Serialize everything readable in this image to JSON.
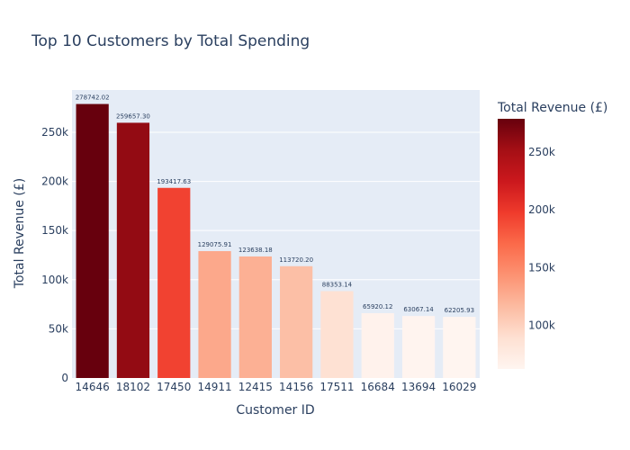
{
  "chart_data": {
    "type": "bar",
    "title": "Top 10 Customers by Total Spending",
    "xlabel": "Customer ID",
    "ylabel": "Total Revenue (£)",
    "categories": [
      "14646",
      "18102",
      "17450",
      "14911",
      "12415",
      "14156",
      "17511",
      "16684",
      "13694",
      "16029"
    ],
    "values": [
      278742.02,
      259657.3,
      193417.63,
      129075.91,
      123638.18,
      113720.2,
      88353.14,
      65920.12,
      63067.14,
      62205.93
    ],
    "value_labels": [
      "278742.02",
      "259657.30",
      "193417.63",
      "129075.91",
      "123638.18",
      "113720.20",
      "88353.14",
      "65920.12",
      "63067.14",
      "62205.93"
    ],
    "ylim": [
      0,
      293000
    ],
    "yticks": [
      0,
      50000,
      100000,
      150000,
      200000,
      250000
    ],
    "ytick_labels": [
      "0",
      "50k",
      "100k",
      "150k",
      "200k",
      "250k"
    ],
    "grid": true,
    "colorscale": "Reds",
    "colorbar": {
      "title": "Total Revenue (£)",
      "range": [
        62205.93,
        278742.02
      ],
      "ticks": [
        100000,
        150000,
        200000,
        250000
      ],
      "tick_labels": [
        "100k",
        "150k",
        "200k",
        "250k"
      ],
      "placement": "right"
    },
    "colors": {
      "plot_bg": "#e5ecf6",
      "grid": "#ffffff",
      "text": "#2a3f5f",
      "scale": [
        "#fff5f0",
        "#fee0d2",
        "#fcbba1",
        "#fc9272",
        "#fb6a4a",
        "#ef3b2c",
        "#cb181d",
        "#a50f15",
        "#67000d"
      ]
    }
  }
}
